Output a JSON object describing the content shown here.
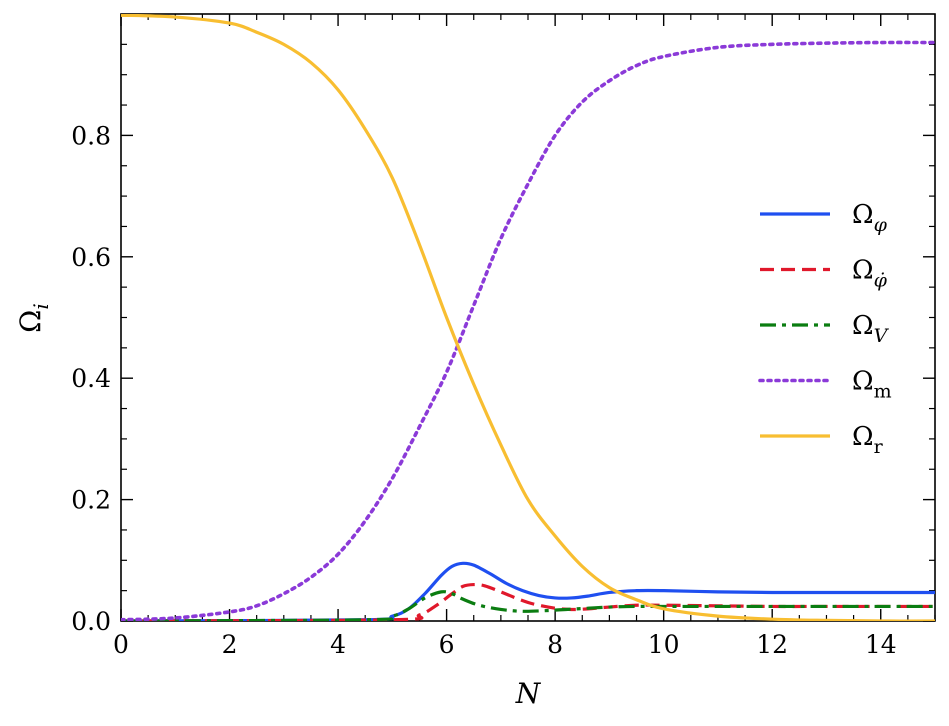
{
  "chart_data": {
    "type": "line",
    "xlabel": "N",
    "ylabel": "Ω",
    "ylabel_sub": "i",
    "xlim": [
      0,
      15
    ],
    "ylim": [
      0,
      1.0
    ],
    "xticks": [
      0,
      2,
      4,
      6,
      8,
      10,
      12,
      14
    ],
    "xtick_labels": [
      "0",
      "2",
      "4",
      "6",
      "8",
      "10",
      "12",
      "14"
    ],
    "yticks": [
      0,
      0.2,
      0.4,
      0.6,
      0.8
    ],
    "ytick_labels": [
      "0.0",
      "0.2",
      "0.4",
      "0.6",
      "0.8"
    ],
    "grid": false,
    "legend_position": "center-right",
    "series": [
      {
        "name": "Ω_φ",
        "label_main": "Ω",
        "label_sub": "φ",
        "color": "#1f4ff0",
        "dash": "solid",
        "x": [
          0,
          4.5,
          5.0,
          5.3,
          5.6,
          5.9,
          6.1,
          6.3,
          6.5,
          6.8,
          7.1,
          7.4,
          7.7,
          8.0,
          8.3,
          8.6,
          9.0,
          9.5,
          10.0,
          11.0,
          12.0,
          13.0,
          14.0,
          15.0
        ],
        "y": [
          0.0,
          0.002,
          0.008,
          0.02,
          0.045,
          0.075,
          0.09,
          0.095,
          0.092,
          0.078,
          0.062,
          0.05,
          0.042,
          0.038,
          0.038,
          0.041,
          0.047,
          0.05,
          0.05,
          0.048,
          0.047,
          0.047,
          0.047,
          0.047
        ]
      },
      {
        "name": "Ω_φ̇",
        "label_main": "Ω",
        "label_sub": "φ̇",
        "color": "#e0182b",
        "dash": "dashed",
        "x": [
          0,
          5.0,
          5.5,
          5.8,
          6.1,
          6.3,
          6.5,
          6.7,
          7.0,
          7.3,
          7.6,
          8.0,
          8.3,
          8.6,
          9.0,
          9.5,
          10.0,
          11.0,
          12.0,
          13.0,
          14.0,
          15.0
        ],
        "y": [
          0.0,
          0.002,
          0.01,
          0.025,
          0.045,
          0.057,
          0.06,
          0.058,
          0.048,
          0.037,
          0.028,
          0.021,
          0.019,
          0.02,
          0.023,
          0.026,
          0.026,
          0.025,
          0.024,
          0.024,
          0.024,
          0.024
        ]
      },
      {
        "name": "Ω_V",
        "label_main": "Ω",
        "label_sub": "V",
        "color": "#0b7d11",
        "dash": "dashdot",
        "x": [
          0,
          4.5,
          5.0,
          5.3,
          5.6,
          5.9,
          6.1,
          6.3,
          6.6,
          7.0,
          7.4,
          7.8,
          8.2,
          8.6,
          9.0,
          9.5,
          10.0,
          11.0,
          12.0,
          13.0,
          14.0,
          15.0
        ],
        "y": [
          0.0,
          0.002,
          0.008,
          0.02,
          0.038,
          0.048,
          0.045,
          0.036,
          0.026,
          0.019,
          0.016,
          0.017,
          0.019,
          0.021,
          0.023,
          0.024,
          0.024,
          0.024,
          0.024,
          0.024,
          0.024,
          0.024
        ]
      },
      {
        "name": "Ω_m",
        "label_main": "Ω",
        "label_sub": "m",
        "color": "#8b3ad8",
        "dash": "dotted",
        "x": [
          0,
          1,
          2,
          2.5,
          3,
          3.5,
          4,
          4.5,
          5,
          5.5,
          6,
          6.5,
          7,
          7.5,
          8,
          8.5,
          9,
          9.5,
          10,
          11,
          12,
          13,
          14,
          15
        ],
        "y": [
          0.002,
          0.005,
          0.015,
          0.025,
          0.045,
          0.072,
          0.11,
          0.165,
          0.235,
          0.32,
          0.41,
          0.52,
          0.63,
          0.72,
          0.8,
          0.855,
          0.89,
          0.915,
          0.93,
          0.945,
          0.95,
          0.952,
          0.953,
          0.953
        ]
      },
      {
        "name": "Ω_r",
        "label_main": "Ω",
        "label_sub": "r",
        "color": "#f8be31",
        "dash": "solid",
        "x": [
          0,
          1,
          2,
          2.5,
          3,
          3.5,
          4,
          4.5,
          5,
          5.5,
          6,
          6.5,
          7,
          7.5,
          8,
          8.5,
          9,
          9.5,
          10,
          11,
          12,
          13,
          14,
          15
        ],
        "y": [
          0.998,
          0.995,
          0.985,
          0.97,
          0.95,
          0.92,
          0.875,
          0.81,
          0.73,
          0.62,
          0.5,
          0.39,
          0.29,
          0.2,
          0.14,
          0.09,
          0.055,
          0.035,
          0.02,
          0.008,
          0.003,
          0.001,
          0.0,
          0.0
        ]
      }
    ]
  }
}
